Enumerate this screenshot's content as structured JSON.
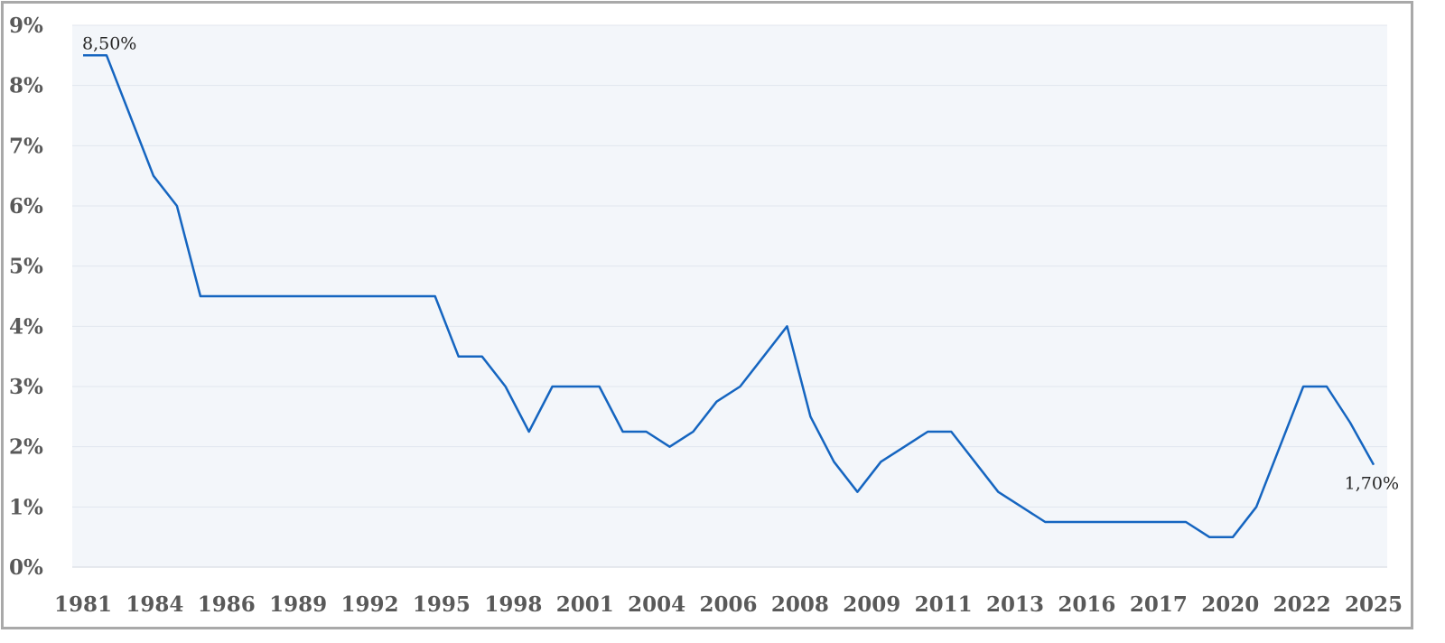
{
  "chart_data": {
    "type": "line",
    "title": "",
    "xlabel": "",
    "ylabel": "",
    "ylim": [
      0,
      9
    ],
    "yticks": [
      "0%",
      "1%",
      "2%",
      "3%",
      "4%",
      "5%",
      "6%",
      "7%",
      "8%",
      "9%"
    ],
    "grid": true,
    "legend": "none",
    "line_color": "#1565C0",
    "plot_background": "#F3F6FA",
    "xtick_labels": [
      "1981",
      "1984",
      "1986",
      "1989",
      "1992",
      "1995",
      "1998",
      "2001",
      "2004",
      "2006",
      "2008",
      "2009",
      "2011",
      "2013",
      "2016",
      "2017",
      "2020",
      "2022",
      "2025"
    ],
    "series": [
      {
        "values": [
          8.5,
          8.5,
          7.5,
          6.5,
          6.0,
          4.5,
          4.5,
          4.5,
          4.5,
          4.5,
          4.5,
          4.5,
          4.5,
          4.5,
          4.5,
          4.5,
          3.5,
          3.5,
          3.0,
          2.25,
          3.0,
          3.0,
          3.0,
          2.25,
          2.25,
          2.0,
          2.25,
          2.75,
          3.0,
          3.5,
          4.0,
          2.5,
          1.75,
          1.25,
          1.75,
          2.0,
          2.25,
          2.25,
          1.75,
          1.25,
          1.0,
          0.75,
          0.75,
          0.75,
          0.75,
          0.75,
          0.75,
          0.75,
          0.5,
          0.5,
          1.0,
          2.0,
          3.0,
          3.0,
          2.4,
          1.7
        ]
      }
    ],
    "data_labels": [
      {
        "index": 0,
        "text": "8,50%"
      },
      {
        "index": 55,
        "text": "1,70%"
      }
    ]
  }
}
